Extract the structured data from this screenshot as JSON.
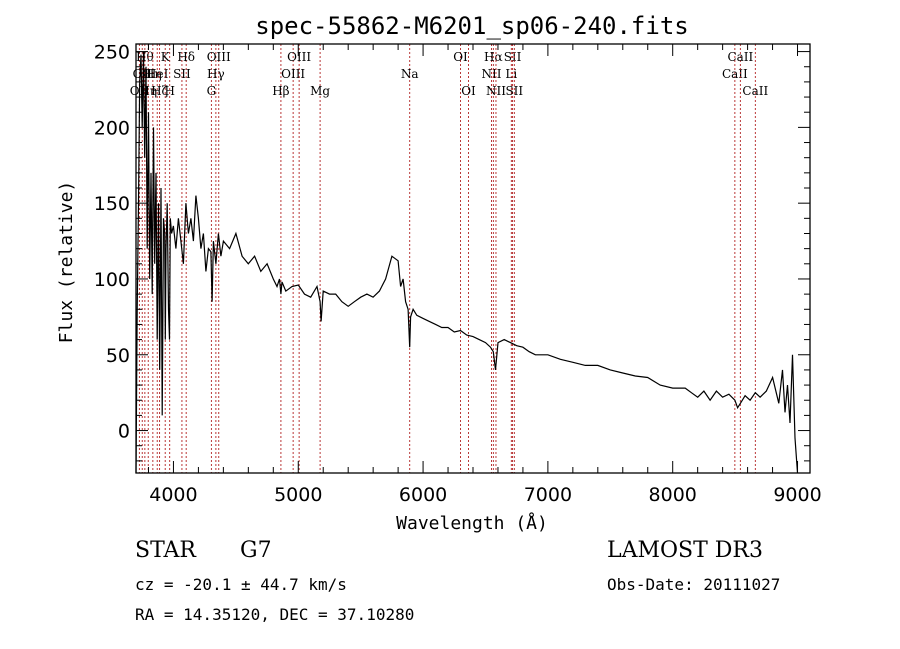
{
  "chart_data": {
    "type": "line",
    "title": "spec-55862-M6201_sp06-240.fits",
    "xlabel": "Wavelength (Å)",
    "ylabel": "Flux (relative)",
    "xlim": [
      3700,
      9100
    ],
    "ylim": [
      -28,
      255
    ],
    "xticks": [
      4000,
      5000,
      6000,
      7000,
      8000,
      9000
    ],
    "yticks": [
      0,
      50,
      100,
      150,
      200,
      250
    ],
    "series": [
      {
        "name": "flux",
        "x": [
          3700,
          3710,
          3720,
          3730,
          3740,
          3750,
          3760,
          3770,
          3780,
          3790,
          3800,
          3810,
          3820,
          3830,
          3840,
          3850,
          3860,
          3870,
          3880,
          3890,
          3900,
          3910,
          3920,
          3930,
          3935,
          3940,
          3950,
          3960,
          3968,
          3975,
          3985,
          4000,
          4020,
          4040,
          4060,
          4080,
          4100,
          4120,
          4140,
          4160,
          4180,
          4200,
          4220,
          4240,
          4260,
          4280,
          4300,
          4310,
          4320,
          4340,
          4360,
          4380,
          4400,
          4450,
          4500,
          4550,
          4600,
          4650,
          4700,
          4750,
          4800,
          4830,
          4850,
          4861,
          4870,
          4900,
          4950,
          5000,
          5050,
          5100,
          5150,
          5175,
          5183,
          5200,
          5250,
          5300,
          5350,
          5400,
          5450,
          5500,
          5550,
          5600,
          5650,
          5700,
          5750,
          5800,
          5820,
          5840,
          5860,
          5880,
          5893,
          5900,
          5920,
          5950,
          6000,
          6050,
          6100,
          6150,
          6200,
          6250,
          6300,
          6350,
          6400,
          6450,
          6500,
          6540,
          6563,
          6580,
          6600,
          6650,
          6700,
          6750,
          6800,
          6850,
          6900,
          7000,
          7100,
          7200,
          7300,
          7400,
          7500,
          7600,
          7700,
          7800,
          7900,
          8000,
          8100,
          8150,
          8200,
          8250,
          8300,
          8350,
          8400,
          8450,
          8498,
          8520,
          8542,
          8580,
          8620,
          8662,
          8700,
          8750,
          8800,
          8850,
          8880,
          8900,
          8920,
          8940,
          8960,
          8980,
          9000
        ],
        "values": [
          -28,
          80,
          150,
          230,
          248,
          200,
          250,
          180,
          240,
          120,
          210,
          100,
          170,
          90,
          200,
          110,
          170,
          60,
          150,
          40,
          160,
          10,
          140,
          130,
          60,
          120,
          150,
          80,
          60,
          140,
          130,
          135,
          120,
          140,
          125,
          110,
          150,
          130,
          140,
          125,
          155,
          140,
          120,
          130,
          105,
          120,
          118,
          85,
          125,
          110,
          130,
          115,
          125,
          120,
          130,
          115,
          110,
          115,
          105,
          110,
          100,
          95,
          100,
          90,
          98,
          92,
          95,
          96,
          90,
          88,
          95,
          85,
          72,
          92,
          90,
          90,
          85,
          82,
          85,
          88,
          90,
          88,
          92,
          100,
          115,
          112,
          95,
          100,
          85,
          80,
          55,
          75,
          80,
          76,
          74,
          72,
          70,
          68,
          68,
          65,
          66,
          63,
          62,
          60,
          58,
          55,
          52,
          40,
          58,
          60,
          58,
          56,
          55,
          52,
          50,
          50,
          47,
          45,
          43,
          43,
          40,
          38,
          36,
          35,
          30,
          28,
          28,
          25,
          22,
          26,
          20,
          26,
          22,
          24,
          20,
          15,
          18,
          23,
          20,
          25,
          22,
          26,
          35,
          18,
          40,
          12,
          30,
          5,
          50,
          -5,
          -28
        ]
      }
    ],
    "lines": [
      {
        "wl": 3727,
        "label": "OII",
        "row": 2
      },
      {
        "wl": 3750,
        "label": "OII",
        "row": 1
      },
      {
        "wl": 3771,
        "label": "Hθ",
        "row": 0
      },
      {
        "wl": 3798,
        "label": "Hη",
        "row": 2
      },
      {
        "wl": 3835,
        "label": "Hη",
        "row": 1
      },
      {
        "wl": 3870,
        "label": "HeI",
        "row": 1
      },
      {
        "wl": 3889,
        "label": "Hζ",
        "row": 2
      },
      {
        "wl": 3934,
        "label": "K",
        "row": 0
      },
      {
        "wl": 3970,
        "label": "H",
        "row": 2
      },
      {
        "wl": 4068,
        "label": "SII",
        "row": 1
      },
      {
        "wl": 4102,
        "label": "Hδ",
        "row": 0
      },
      {
        "wl": 4304,
        "label": "G",
        "row": 2
      },
      {
        "wl": 4340,
        "label": "Hγ",
        "row": 1
      },
      {
        "wl": 4363,
        "label": "OIII",
        "row": 0
      },
      {
        "wl": 4861,
        "label": "Hβ",
        "row": 2
      },
      {
        "wl": 4959,
        "label": "OIII",
        "row": 1
      },
      {
        "wl": 5007,
        "label": "OIII",
        "row": 0
      },
      {
        "wl": 5175,
        "label": "Mg",
        "row": 2
      },
      {
        "wl": 5893,
        "label": "Na",
        "row": 1
      },
      {
        "wl": 6300,
        "label": "OI",
        "row": 0
      },
      {
        "wl": 6364,
        "label": "OI",
        "row": 2
      },
      {
        "wl": 6548,
        "label": "NII",
        "row": 1
      },
      {
        "wl": 6563,
        "label": "Hα",
        "row": 0
      },
      {
        "wl": 6584,
        "label": "NII",
        "row": 2
      },
      {
        "wl": 6707,
        "label": "Li",
        "row": 1
      },
      {
        "wl": 6717,
        "label": "SII",
        "row": 0
      },
      {
        "wl": 6731,
        "label": "SII",
        "row": 2
      },
      {
        "wl": 8498,
        "label": "CaII",
        "row": 1
      },
      {
        "wl": 8542,
        "label": "CaII",
        "row": 0
      },
      {
        "wl": 8662,
        "label": "CaII",
        "row": 2
      }
    ]
  },
  "info": {
    "class": "STAR",
    "subclass": "G7",
    "survey": "LAMOST DR3",
    "cz": "cz = -20.1 ± 44.7 km/s",
    "obs_date": "Obs-Date: 20111027",
    "coords": "RA =  14.35120, DEC =  37.10280"
  }
}
